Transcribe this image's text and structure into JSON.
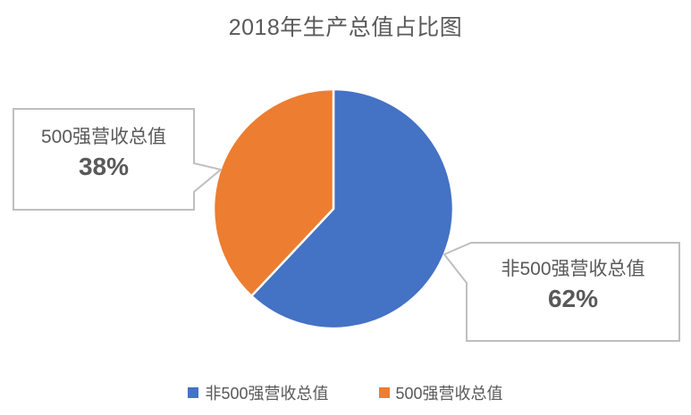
{
  "title": "2018年生产总值占比图",
  "chart_data": {
    "type": "pie",
    "title": "2018年生产总值占比图",
    "series": [
      {
        "name": "非500强营收总值",
        "value": 62,
        "percent_label": "62%",
        "color": "#4472C4"
      },
      {
        "name": "500强营收总值",
        "value": 38,
        "percent_label": "38%",
        "color": "#ED7D31"
      }
    ],
    "start_angle": "12-oclock",
    "direction": "clockwise",
    "legend_position": "bottom",
    "data_label_style": "callout boxes with category name and percentage"
  },
  "callouts": {
    "right": {
      "label": "非500强营收总值",
      "value": "62%"
    },
    "left": {
      "label": "500强营收总值",
      "value": "38%"
    }
  },
  "legend": {
    "items": [
      {
        "label": "非500强营收总值",
        "color": "#4472C4"
      },
      {
        "label": "500强营收总值",
        "color": "#ED7D31"
      }
    ]
  },
  "colors": {
    "slice_blue": "#4472C4",
    "slice_orange": "#ED7D31",
    "text": "#595959",
    "callout_border": "#BFBFBF",
    "callout_fill": "#FFFFFF",
    "background": "#FFFFFF"
  }
}
